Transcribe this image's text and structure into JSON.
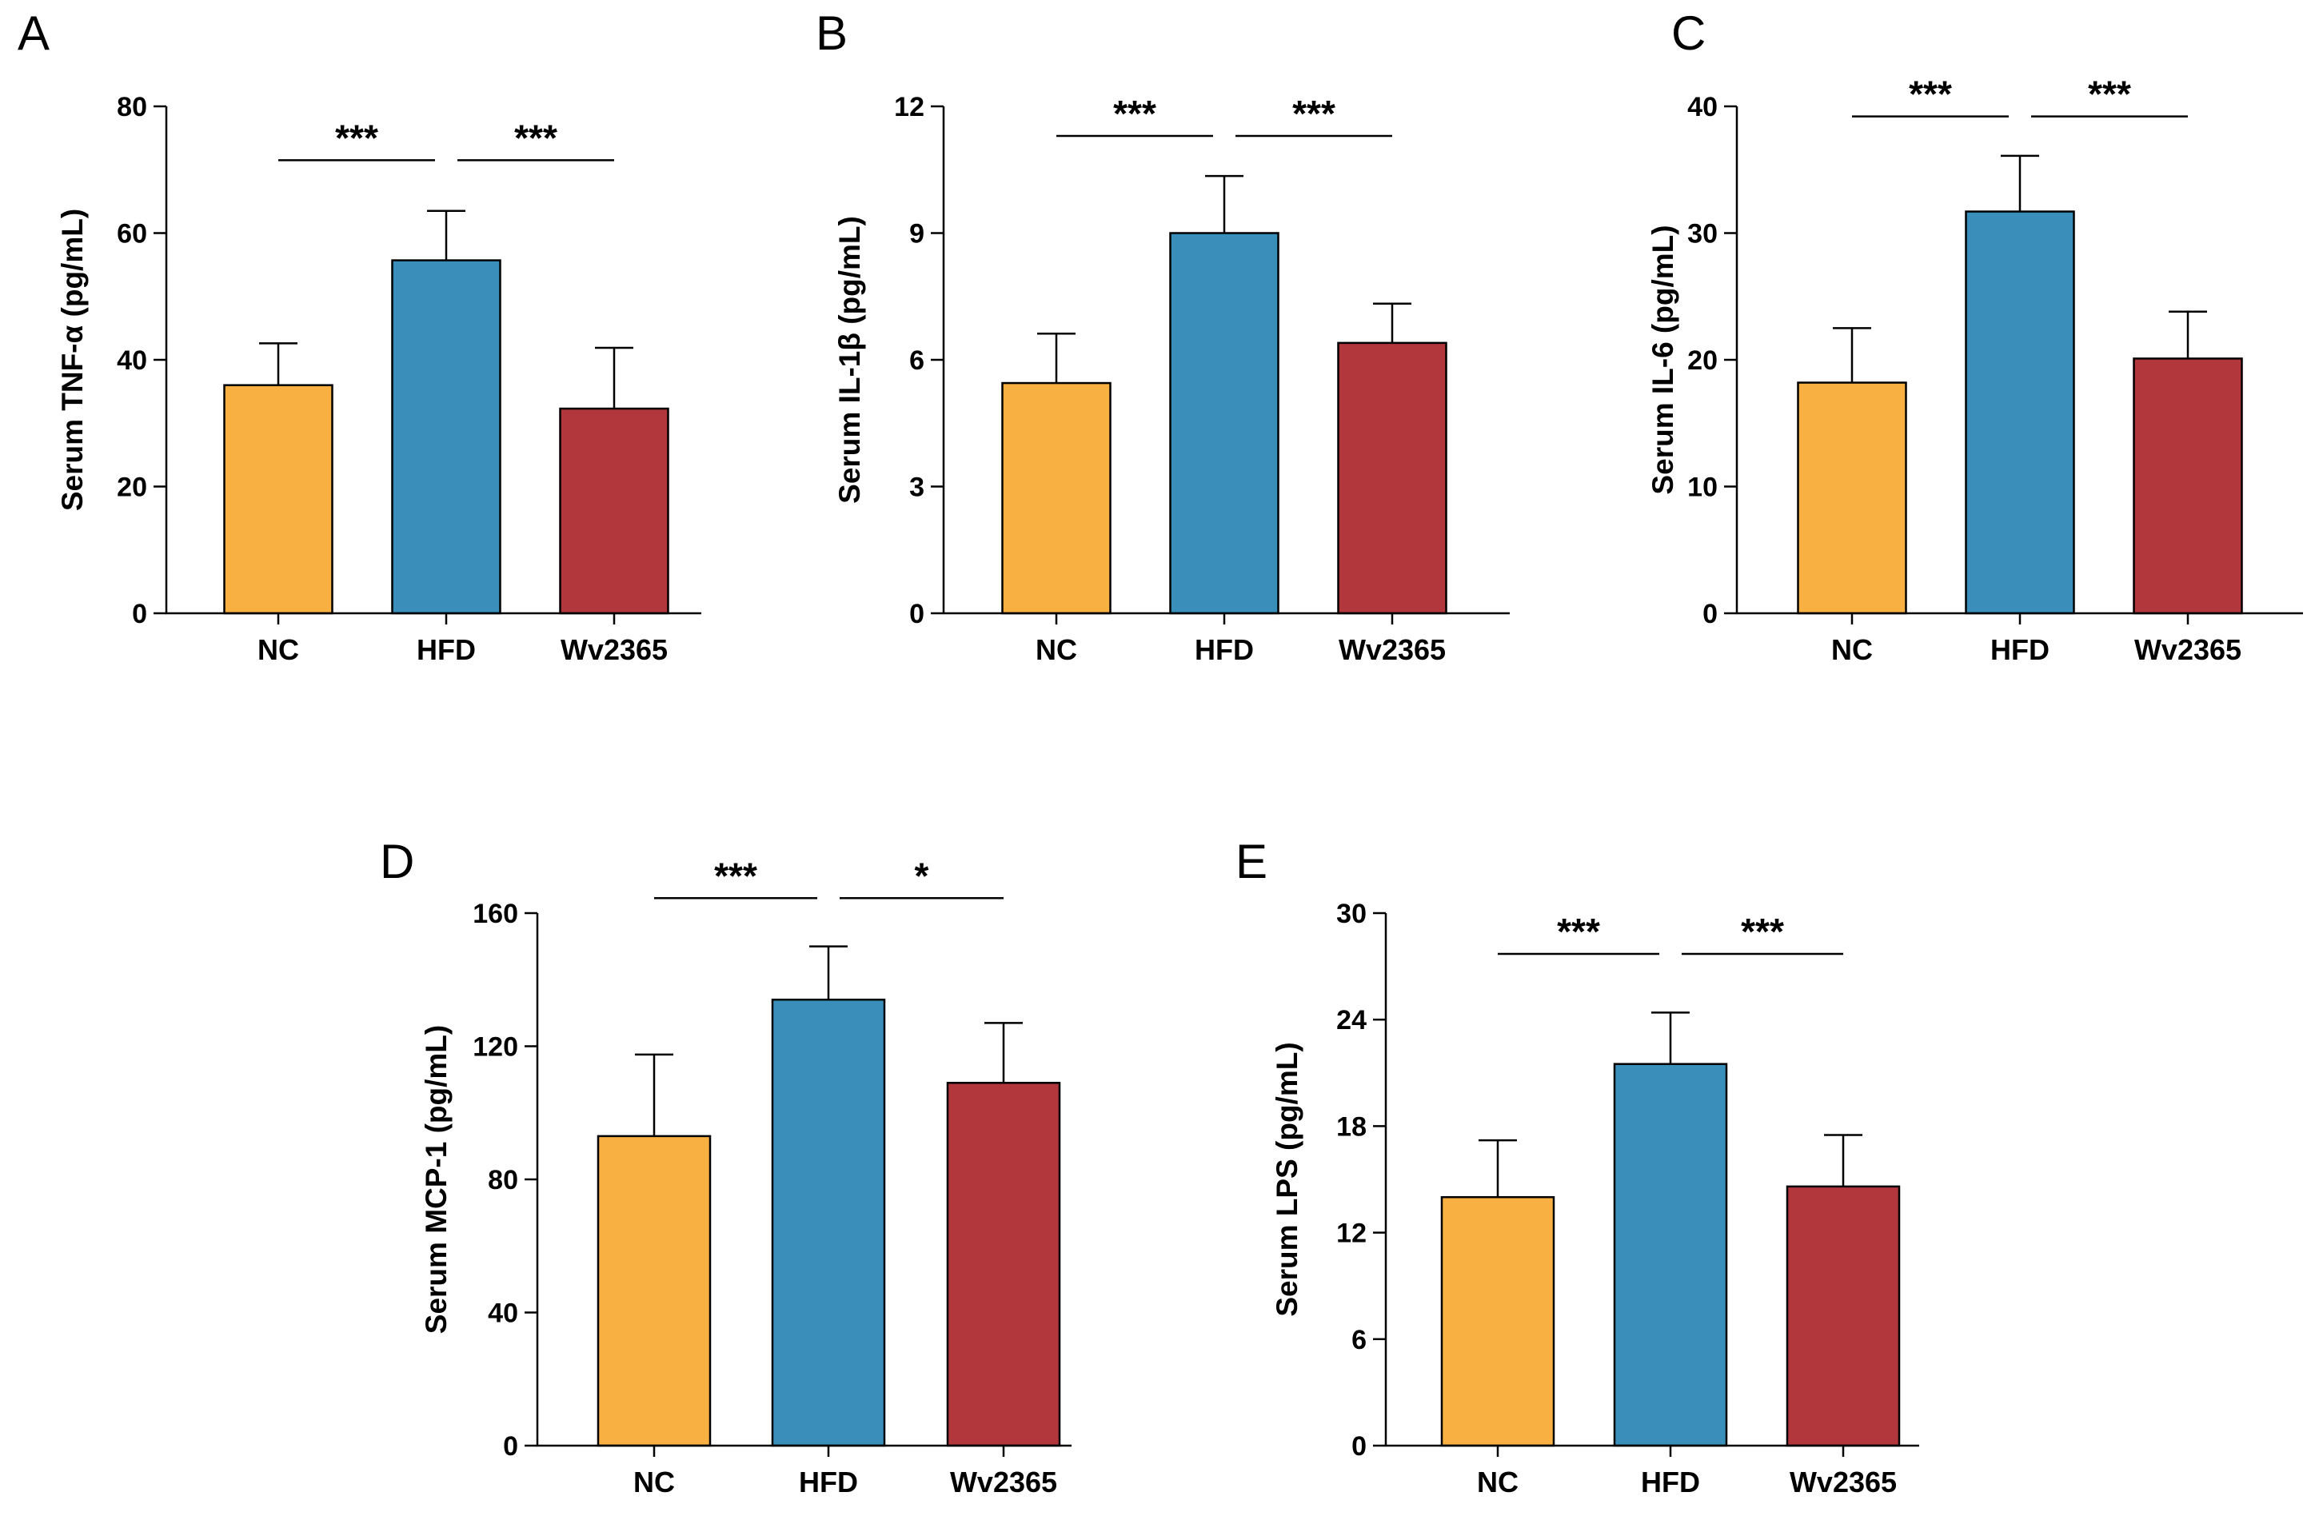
{
  "figure_title": "",
  "colors": {
    "NC": "#F9B042",
    "HFD": "#3A8FBA",
    "Wv2365": "#B1373C",
    "axis": "#000000"
  },
  "chart_data": [
    {
      "panel": "A",
      "type": "bar",
      "title": "",
      "xlabel": "",
      "ylabel": "Serum TNF-α (pg/mL)",
      "categories": [
        "NC",
        "HFD",
        "Wv2365"
      ],
      "values": [
        36.0,
        55.7,
        32.3
      ],
      "errors": [
        6.6,
        7.8,
        9.6
      ],
      "ylim": [
        0,
        80
      ],
      "yticks": [
        0,
        20,
        40,
        60,
        80
      ],
      "ytick_labels": [
        "0",
        "20",
        "40",
        "60",
        "80"
      ],
      "significance": [
        {
          "from": "NC",
          "to": "HFD",
          "label": "***"
        },
        {
          "from": "HFD",
          "to": "Wv2365",
          "label": "***"
        }
      ],
      "sig_level": 71.5,
      "grid": false,
      "legend": "none"
    },
    {
      "panel": "B",
      "type": "bar",
      "title": "",
      "xlabel": "",
      "ylabel": "Serum IL-1β (pg/mL)",
      "categories": [
        "NC",
        "HFD",
        "Wv2365"
      ],
      "values": [
        5.45,
        9.0,
        6.4
      ],
      "errors": [
        1.17,
        1.35,
        0.93
      ],
      "ylim": [
        0,
        12
      ],
      "yticks": [
        0,
        3,
        6,
        9,
        12
      ],
      "ytick_labels": [
        "0",
        "3",
        "6",
        "9",
        "12"
      ],
      "significance": [
        {
          "from": "NC",
          "to": "HFD",
          "label": "***"
        },
        {
          "from": "HFD",
          "to": "Wv2365",
          "label": "***"
        }
      ],
      "sig_level": 11.3,
      "grid": false,
      "legend": "none"
    },
    {
      "panel": "C",
      "type": "bar",
      "title": "",
      "xlabel": "",
      "ylabel": "Serum IL-6 (pg/mL)",
      "categories": [
        "NC",
        "HFD",
        "Wv2365"
      ],
      "values": [
        18.2,
        31.7,
        20.1
      ],
      "errors": [
        4.3,
        4.4,
        3.7
      ],
      "ylim": [
        0,
        40
      ],
      "yticks": [
        0,
        10,
        20,
        30,
        40
      ],
      "ytick_labels": [
        "0",
        "10",
        "20",
        "30",
        "40"
      ],
      "significance": [
        {
          "from": "NC",
          "to": "HFD",
          "label": "***"
        },
        {
          "from": "HFD",
          "to": "Wv2365",
          "label": "***"
        }
      ],
      "sig_level": 39.2,
      "grid": false,
      "legend": "none"
    },
    {
      "panel": "D",
      "type": "bar",
      "title": "",
      "xlabel": "",
      "ylabel": "Serum MCP-1 (pg/mL)",
      "categories": [
        "NC",
        "HFD",
        "Wv2365"
      ],
      "values": [
        93.0,
        134.0,
        109.0
      ],
      "errors": [
        24.5,
        16.0,
        18.0
      ],
      "ylim": [
        0,
        160
      ],
      "yticks": [
        0,
        40,
        80,
        120,
        160
      ],
      "ytick_labels": [
        "0",
        "40",
        "80",
        "120",
        "160"
      ],
      "significance": [
        {
          "from": "NC",
          "to": "HFD",
          "label": "***"
        },
        {
          "from": "HFD",
          "to": "Wv2365",
          "label": "*"
        }
      ],
      "sig_level": 164.5,
      "grid": false,
      "legend": "none"
    },
    {
      "panel": "E",
      "type": "bar",
      "title": "",
      "xlabel": "",
      "ylabel": "Serum LPS (pg/mL)",
      "categories": [
        "NC",
        "HFD",
        "Wv2365"
      ],
      "values": [
        14.0,
        21.5,
        14.6
      ],
      "errors": [
        3.2,
        2.9,
        2.9
      ],
      "ylim": [
        0,
        30
      ],
      "yticks": [
        0,
        6,
        12,
        18,
        24,
        30
      ],
      "ytick_labels": [
        "0",
        "6",
        "12",
        "18",
        "24",
        "30"
      ],
      "significance": [
        {
          "from": "NC",
          "to": "HFD",
          "label": "***"
        },
        {
          "from": "HFD",
          "to": "Wv2365",
          "label": "***"
        }
      ],
      "sig_level": 27.7,
      "grid": false,
      "legend": "none"
    }
  ]
}
